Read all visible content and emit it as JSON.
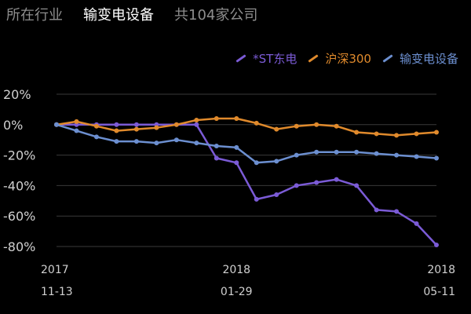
{
  "header": {
    "label": "所在行业",
    "industry": "输变电设备",
    "count_text": "共104家公司"
  },
  "colors": {
    "background": "#000000",
    "st_dongdian": "#7b5bd6",
    "hs300": "#e08a2c",
    "industry": "#6c8fd0",
    "grid": "#3a3a3a"
  },
  "chart_data": {
    "type": "line",
    "xlabel": "",
    "ylabel": "",
    "ylim": [
      -80,
      20
    ],
    "yticks": [
      "20%",
      "0%",
      "-20%",
      "-40%",
      "-60%",
      "-80%"
    ],
    "ytick_values": [
      20,
      0,
      -20,
      -40,
      -60,
      -80
    ],
    "xticks": [
      {
        "year": "2017",
        "date": "11-13",
        "index": 0
      },
      {
        "year": "2018",
        "date": "01-29",
        "index": 9
      },
      {
        "year": "2018",
        "date": "05-11",
        "index": 19
      }
    ],
    "grid": true,
    "legend_position": "top-right",
    "series": [
      {
        "name": "*ST东电",
        "color": "#7b5bd6",
        "values": [
          0,
          0,
          0,
          0,
          0,
          0,
          0,
          0,
          -22,
          -25,
          -49,
          -46,
          -40,
          -38,
          -36,
          -40,
          -56,
          -57,
          -65,
          -79
        ]
      },
      {
        "name": "沪深300",
        "color": "#e08a2c",
        "values": [
          0,
          2,
          -1,
          -4,
          -3,
          -2,
          0,
          3,
          4,
          4,
          1,
          -3,
          -1,
          0,
          -1,
          -5,
          -6,
          -7,
          -6,
          -5
        ]
      },
      {
        "name": "输变电设备",
        "color": "#6c8fd0",
        "values": [
          0,
          -4,
          -8,
          -11,
          -11,
          -12,
          -10,
          -12,
          -14,
          -15,
          -25,
          -24,
          -20,
          -18,
          -18,
          -18,
          -19,
          -20,
          -21,
          -22
        ]
      }
    ]
  }
}
